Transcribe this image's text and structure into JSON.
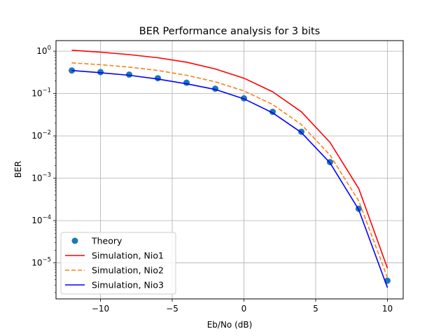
{
  "chart_data": {
    "type": "line",
    "title": "BER Performance analysis for 3 bits",
    "xlabel": "Eb/No (dB)",
    "ylabel": "BER",
    "xlim": [
      -13.1,
      11.1
    ],
    "ylim_log10": [
      -5.85,
      0.25
    ],
    "yscale": "log",
    "grid": true,
    "legend_location": "lower-left",
    "x_ticks": [
      -10,
      -5,
      0,
      5,
      10
    ],
    "x_tick_labels": [
      "−10",
      "−5",
      "0",
      "5",
      "10"
    ],
    "y_tick_exponents": [
      0,
      -1,
      -2,
      -3,
      -4,
      -5
    ],
    "y_tick_labels": [
      "10^0",
      "10^-1",
      "10^-2",
      "10^-3",
      "10^-4",
      "10^-5"
    ],
    "x": [
      -12,
      -10,
      -8,
      -6,
      -4,
      -2,
      0,
      2,
      4,
      6,
      8,
      10
    ],
    "series": [
      {
        "name": "Theory",
        "style": "marker",
        "color": "#1f77b4",
        "values": [
          0.35,
          0.32,
          0.28,
          0.23,
          0.18,
          0.13,
          0.077,
          0.037,
          0.0125,
          0.0024,
          0.00019,
          3.8e-06
        ]
      },
      {
        "name": "Simulation, Nio1",
        "style": "solid",
        "color": "#ff0000",
        "values": [
          1.05,
          0.95,
          0.83,
          0.7,
          0.55,
          0.38,
          0.23,
          0.11,
          0.037,
          0.007,
          0.00057,
          7.5e-06
        ]
      },
      {
        "name": "Simulation, Nio2",
        "style": "dashed",
        "color": "#ff7f0e",
        "values": [
          0.53,
          0.48,
          0.42,
          0.35,
          0.27,
          0.19,
          0.115,
          0.055,
          0.0185,
          0.0035,
          0.00029,
          4.5e-06
        ]
      },
      {
        "name": "Simulation, Nio3",
        "style": "solid",
        "color": "#0000ff",
        "values": [
          0.35,
          0.31,
          0.27,
          0.22,
          0.17,
          0.125,
          0.075,
          0.035,
          0.012,
          0.0023,
          0.00018,
          2.6e-06
        ]
      }
    ]
  }
}
